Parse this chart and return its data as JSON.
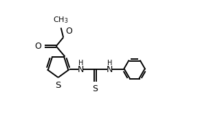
{
  "bg_color": "#ffffff",
  "line_color": "#000000",
  "line_width": 1.4,
  "fig_width": 3.04,
  "fig_height": 1.88,
  "dpi": 100,
  "font_size": 8.5,
  "xlim": [
    0,
    10
  ],
  "ylim": [
    0,
    6.2
  ]
}
